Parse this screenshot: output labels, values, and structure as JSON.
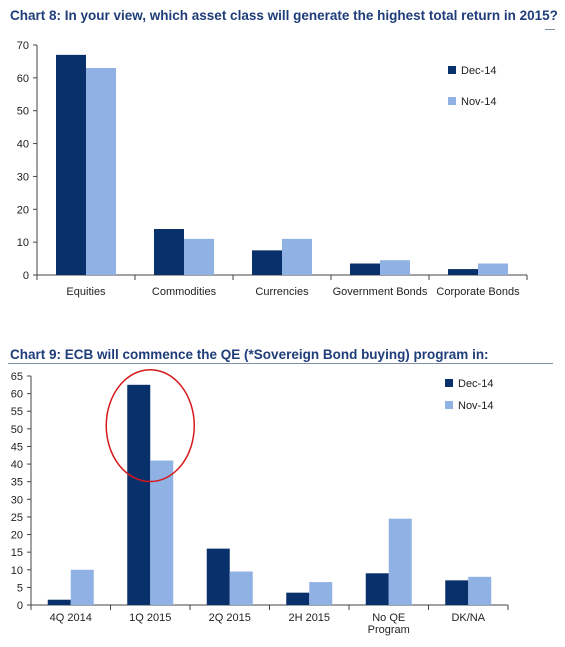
{
  "chart_data": [
    {
      "type": "bar",
      "title": "Chart 8: In your view, which asset class will generate the highest total return in 2015?",
      "categories": [
        [
          "Equities"
        ],
        [
          "Commodities"
        ],
        [
          "Currencies"
        ],
        [
          "Government Bonds"
        ],
        [
          "Corporate Bonds"
        ]
      ],
      "series": [
        {
          "name": "Dec-14",
          "color": "#08306b",
          "values": [
            67,
            14,
            7.5,
            3.5,
            1.8
          ]
        },
        {
          "name": "Nov-14",
          "color": "#8fb1e3",
          "values": [
            63,
            11,
            11,
            4.5,
            3.5
          ]
        }
      ],
      "yticks": [
        0,
        10,
        20,
        30,
        40,
        50,
        60,
        70
      ],
      "ylim": [
        0,
        70
      ],
      "xlabel": "",
      "ylabel": "",
      "legend_position": "top-right",
      "grid": false
    },
    {
      "type": "bar",
      "title": "Chart 9: ECB will commence the QE (*Sovereign Bond buying) program in:",
      "categories": [
        [
          "4Q 2014"
        ],
        [
          "1Q 2015"
        ],
        [
          "2Q 2015"
        ],
        [
          "2H 2015"
        ],
        [
          "No QE",
          "Program"
        ],
        [
          "DK/NA"
        ]
      ],
      "series": [
        {
          "name": "Dec-14",
          "color": "#08306b",
          "values": [
            1.5,
            62.5,
            16,
            3.5,
            9,
            7
          ]
        },
        {
          "name": "Nov-14",
          "color": "#8fb1e3",
          "values": [
            10,
            41,
            9.5,
            6.5,
            24.5,
            8
          ]
        }
      ],
      "yticks": [
        0,
        5,
        10,
        15,
        20,
        25,
        30,
        35,
        40,
        45,
        50,
        55,
        60,
        65
      ],
      "ylim": [
        0,
        65
      ],
      "xlabel": "",
      "ylabel": "",
      "legend_position": "top-right",
      "grid": false,
      "highlight": {
        "shape": "ellipse",
        "color": "#d7191c",
        "category": "1Q 2015"
      }
    }
  ]
}
